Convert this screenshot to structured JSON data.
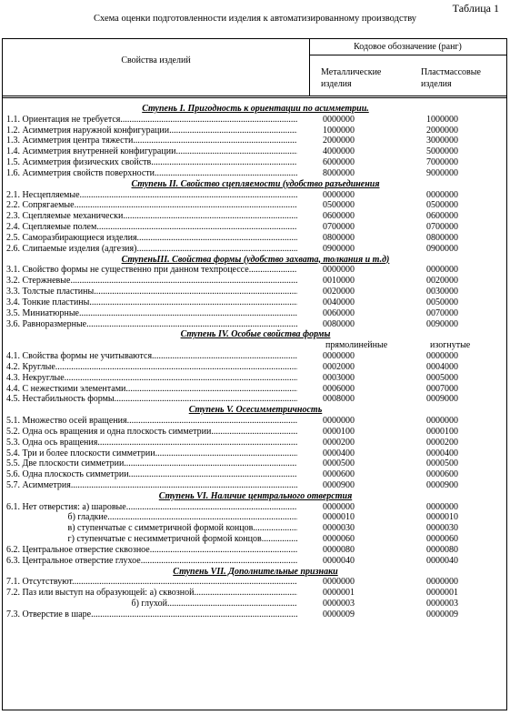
{
  "caption": "Таблица 1",
  "title": "Схема оценки подготовленности изделия к автоматизированному производству",
  "header": {
    "properties": "Свойства изделий",
    "code": "Кодовое обозначение (ранг)",
    "metal": "Металлические изделия",
    "plastic": "Пластмассовые изделия"
  },
  "rows": [
    {
      "type": "stage",
      "text": "Ступень I. Пригодность к ориентации по асимметрии."
    },
    {
      "type": "item",
      "prop": "1.1. Ориентация не требуется",
      "c1": "0000000",
      "c2": "1000000"
    },
    {
      "type": "item",
      "prop": "1.2. Асимметрия наружной конфигурации",
      "c1": "1000000",
      "c2": "2000000"
    },
    {
      "type": "item",
      "prop": "1.3. Асимметрия центра тяжести",
      "c1": "2000000",
      "c2": "3000000"
    },
    {
      "type": "item",
      "prop": "1.4. Асимметрия внутренней конфигурации",
      "c1": "4000000",
      "c2": "5000000"
    },
    {
      "type": "item",
      "prop": "1.5. Асимметрия физических свойств",
      "c1": "6000000",
      "c2": "7000000"
    },
    {
      "type": "item",
      "prop": "1.6. Асимметрия свойств поверхности",
      "c1": "8000000",
      "c2": "9000000"
    },
    {
      "type": "stage",
      "text": "Ступень II. Свойство сцепляемости (удобство разъединения"
    },
    {
      "type": "item",
      "prop": "2.1. Несцепляемые",
      "c1": "0000000",
      "c2": "0000000"
    },
    {
      "type": "item",
      "prop": "2.2. Сопрягаемые",
      "c1": "0500000",
      "c2": "0500000"
    },
    {
      "type": "item",
      "prop": "2.3. Сцепляемые механически",
      "c1": "0600000",
      "c2": "0600000"
    },
    {
      "type": "item",
      "prop": "2.4. Сцепляемые полем",
      "c1": "0700000",
      "c2": "0700000"
    },
    {
      "type": "item",
      "prop": "2.5. Саморазбирающиеся изделия",
      "c1": "0800000",
      "c2": "0800000"
    },
    {
      "type": "item",
      "prop": "2.6. Слипаемые изделия (адгезия)",
      "c1": "0900000",
      "c2": "0900000"
    },
    {
      "type": "stage",
      "text": "СтупеньIII. Свойства формы (удобство захвата, толкания и т.д)"
    },
    {
      "type": "item",
      "prop": "3.1. Свойство формы не существенно при данном техпроцессе",
      "c1": "0000000",
      "c2": "0000000"
    },
    {
      "type": "item",
      "prop": "3.2. Стержневые",
      "c1": "0010000",
      "c2": "0020000"
    },
    {
      "type": "item",
      "prop": "3.3. Толстые пластины",
      "c1": "0020000",
      "c2": "0030000"
    },
    {
      "type": "item",
      "prop": "3.4. Тонкие пластины",
      "c1": "0040000",
      "c2": "0050000"
    },
    {
      "type": "item",
      "prop": "3.5. Миниатюрные",
      "c1": "0060000",
      "c2": "0070000"
    },
    {
      "type": "item",
      "prop": "3.6. Равноразмерные",
      "c1": "0080000",
      "c2": "0090000"
    },
    {
      "type": "stage",
      "text": "Ступень IV. Особые свойства формы"
    },
    {
      "type": "subhead",
      "c1": "прямолинейные",
      "c2": "изогнутые"
    },
    {
      "type": "item",
      "prop": "4.1. Свойства формы не учитываются",
      "c1": "0000000",
      "c2": "0000000"
    },
    {
      "type": "item",
      "prop": "4.2. Круглые",
      "c1": "0002000",
      "c2": "0004000"
    },
    {
      "type": "item",
      "prop": "4.3. Некруглые",
      "c1": "0003000",
      "c2": "0005000"
    },
    {
      "type": "item",
      "prop": "4.4. С нежесткими элементами",
      "c1": "0006000",
      "c2": "0007000"
    },
    {
      "type": "item",
      "prop": "4.5. Нестабильность формы",
      "c1": "0008000",
      "c2": "0009000"
    },
    {
      "type": "stage",
      "text": "Ступень V. Осесимметричность"
    },
    {
      "type": "item",
      "prop": "5.1. Множество осей вращения",
      "c1": "0000000",
      "c2": "0000000"
    },
    {
      "type": "item",
      "prop": "5.2. Одна ось вращения и одна плоскость симметрии",
      "c1": "0000100",
      "c2": "0000100"
    },
    {
      "type": "item",
      "prop": "5.3. Одна ось вращения",
      "c1": "0000200",
      "c2": "0000200"
    },
    {
      "type": "item",
      "prop": "5.4. Три и более плоскости симметрии",
      "c1": "0000400",
      "c2": "0000400"
    },
    {
      "type": "item",
      "prop": "5.5. Две плоскости симметрии",
      "c1": "0000500",
      "c2": "0000500"
    },
    {
      "type": "item",
      "prop": "5.6. Одна плоскость симметрии",
      "c1": "0000600",
      "c2": "0000600"
    },
    {
      "type": "item",
      "prop": "5.7. Асимметрия",
      "c1": "0000900",
      "c2": "0000900"
    },
    {
      "type": "stage",
      "text": "Ступень VI. Наличие центрального отверстия"
    },
    {
      "type": "item",
      "prop": "6.1. Нет отверстия: а) шаровые",
      "c1": "0000000",
      "c2": "0000000"
    },
    {
      "type": "item",
      "prop": "                           б) гладкие",
      "c1": "0000010",
      "c2": "0000010"
    },
    {
      "type": "item",
      "prop": "                           в) ступенчатые с симметричной формой концов",
      "c1": "0000030",
      "c2": "0000030"
    },
    {
      "type": "item",
      "prop": "                           г) ступенчатые с несимметричной формой концов",
      "c1": "0000060",
      "c2": "0000060"
    },
    {
      "type": "item",
      "prop": "6.2. Центральное отверстие сквозное",
      "c1": "0000080",
      "c2": "0000080"
    },
    {
      "type": "item",
      "prop": "6.3. Центральное отверстие глухое",
      "c1": "0000040",
      "c2": "0000040"
    },
    {
      "type": "stage",
      "text": "Ступень VII. Дополнительные признаки"
    },
    {
      "type": "item",
      "prop": "7.1. Отсутствуют",
      "c1": "0000000",
      "c2": "0000000"
    },
    {
      "type": "item",
      "prop": "7.2. Паз или выступ на образующей: а) сквозной",
      "c1": "0000001",
      "c2": "0000001"
    },
    {
      "type": "item",
      "prop": "                                                       б) глухой",
      "c1": "0000003",
      "c2": "0000003"
    },
    {
      "type": "item",
      "prop": "7.3. Отверстие в шаре",
      "c1": "0000009",
      "c2": "0000009"
    }
  ]
}
